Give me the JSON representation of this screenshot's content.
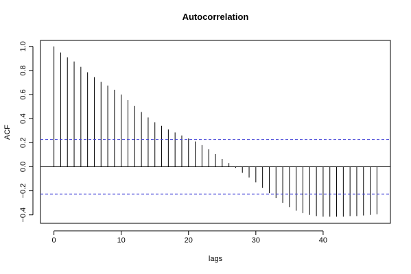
{
  "chart_data": {
    "type": "bar",
    "title": "Autocorrelation",
    "xlabel": "lags",
    "ylabel": "ACF",
    "x": [
      0,
      1,
      2,
      3,
      4,
      5,
      6,
      7,
      8,
      9,
      10,
      11,
      12,
      13,
      14,
      15,
      16,
      17,
      18,
      19,
      20,
      21,
      22,
      23,
      24,
      25,
      26,
      27,
      28,
      29,
      30,
      31,
      32,
      33,
      34,
      35,
      36,
      37,
      38,
      39,
      40,
      41,
      42,
      43,
      44,
      45,
      46,
      47,
      48
    ],
    "values": [
      1.0,
      0.95,
      0.91,
      0.875,
      0.83,
      0.785,
      0.745,
      0.705,
      0.675,
      0.64,
      0.6,
      0.555,
      0.505,
      0.455,
      0.41,
      0.37,
      0.34,
      0.31,
      0.285,
      0.26,
      0.235,
      0.21,
      0.18,
      0.145,
      0.105,
      0.065,
      0.03,
      -0.01,
      -0.05,
      -0.09,
      -0.13,
      -0.175,
      -0.22,
      -0.26,
      -0.3,
      -0.335,
      -0.365,
      -0.385,
      -0.4,
      -0.41,
      -0.415,
      -0.415,
      -0.415,
      -0.415,
      -0.41,
      -0.41,
      -0.405,
      -0.4,
      -0.395
    ],
    "xlim": [
      -2,
      50
    ],
    "ylim": [
      -0.47,
      1.05
    ],
    "xticks": [
      0,
      10,
      20,
      30,
      40
    ],
    "yticks": [
      -0.4,
      -0.2,
      0.0,
      0.2,
      0.4,
      0.6,
      0.8,
      1.0
    ],
    "xtick_labels": [
      "0",
      "10",
      "20",
      "30",
      "40"
    ],
    "ytick_labels": [
      "−0.4",
      "−0.2",
      "0.0",
      "0.2",
      "0.4",
      "0.6",
      "0.8",
      "1.0"
    ],
    "confidence_bound": 0.2265,
    "confidence_color": "#3b3bd6",
    "bar_color": "#000000",
    "grid": false
  }
}
